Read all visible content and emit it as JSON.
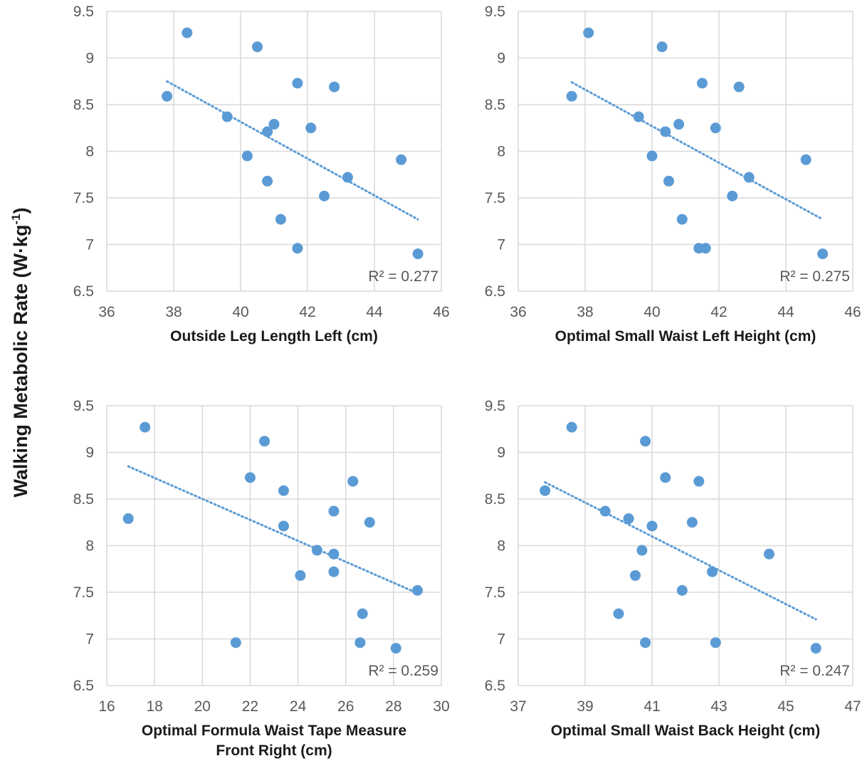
{
  "y_axis_label": "Walking Metabolic Rate (W·kg",
  "y_axis_label_sup": "-1",
  "y_axis_label_end": ")",
  "colors": {
    "points": "#5b9bd5",
    "trendline": "#5b9bd5",
    "grid": "#d9d9d9"
  },
  "chart_data": [
    {
      "type": "scatter",
      "xlabel_lines": [
        "Outside Leg Length Left (cm)"
      ],
      "xlim": [
        36,
        46
      ],
      "xticks": [
        36,
        38,
        40,
        42,
        44,
        46
      ],
      "ylim": [
        6.5,
        9.5
      ],
      "yticks": [
        "6.5",
        "7",
        "7.5",
        "8",
        "8.5",
        "9",
        "9.5"
      ],
      "grid": "vertical and horizontal",
      "r2_label": "R² = 0.277",
      "trendline": {
        "type": "linear",
        "x": [
          37.8,
          45.3
        ],
        "y": [
          8.75,
          7.27
        ]
      },
      "points": [
        {
          "x": 37.8,
          "y": 8.59
        },
        {
          "x": 38.4,
          "y": 9.27
        },
        {
          "x": 39.6,
          "y": 8.37
        },
        {
          "x": 40.2,
          "y": 7.95
        },
        {
          "x": 40.5,
          "y": 9.12
        },
        {
          "x": 40.8,
          "y": 8.21
        },
        {
          "x": 40.8,
          "y": 7.68
        },
        {
          "x": 41.0,
          "y": 8.29
        },
        {
          "x": 41.2,
          "y": 7.27
        },
        {
          "x": 41.7,
          "y": 8.73
        },
        {
          "x": 41.7,
          "y": 6.96
        },
        {
          "x": 42.1,
          "y": 8.25
        },
        {
          "x": 42.5,
          "y": 7.52
        },
        {
          "x": 42.8,
          "y": 8.69
        },
        {
          "x": 43.2,
          "y": 7.72
        },
        {
          "x": 44.8,
          "y": 7.91
        },
        {
          "x": 45.3,
          "y": 6.9
        }
      ]
    },
    {
      "type": "scatter",
      "xlabel_lines": [
        "Optimal Small Waist Left Height (cm)"
      ],
      "xlim": [
        36,
        46
      ],
      "xticks": [
        36,
        38,
        40,
        42,
        44,
        46
      ],
      "ylim": [
        6.5,
        9.5
      ],
      "yticks": [
        "6.5",
        "7",
        "7.5",
        "8",
        "8.5",
        "9",
        "9.5"
      ],
      "grid": "vertical and horizontal",
      "r2_label": "R² = 0.275",
      "trendline": {
        "type": "linear",
        "x": [
          37.6,
          45.1
        ],
        "y": [
          8.74,
          7.27
        ]
      },
      "points": [
        {
          "x": 37.6,
          "y": 8.59
        },
        {
          "x": 38.1,
          "y": 9.27
        },
        {
          "x": 39.6,
          "y": 8.37
        },
        {
          "x": 40.0,
          "y": 7.95
        },
        {
          "x": 40.3,
          "y": 9.12
        },
        {
          "x": 40.4,
          "y": 8.21
        },
        {
          "x": 40.5,
          "y": 7.68
        },
        {
          "x": 40.8,
          "y": 8.29
        },
        {
          "x": 40.9,
          "y": 7.27
        },
        {
          "x": 41.4,
          "y": 6.96
        },
        {
          "x": 41.5,
          "y": 8.73
        },
        {
          "x": 41.6,
          "y": 6.96
        },
        {
          "x": 41.9,
          "y": 8.25
        },
        {
          "x": 42.4,
          "y": 7.52
        },
        {
          "x": 42.6,
          "y": 8.69
        },
        {
          "x": 42.9,
          "y": 7.72
        },
        {
          "x": 44.6,
          "y": 7.91
        },
        {
          "x": 45.1,
          "y": 6.9
        }
      ]
    },
    {
      "type": "scatter",
      "xlabel_lines": [
        "Optimal Formula Waist Tape Measure",
        "Front Right (cm)"
      ],
      "xlim": [
        16,
        30
      ],
      "xticks": [
        16,
        18,
        20,
        22,
        24,
        26,
        28,
        30
      ],
      "ylim": [
        6.5,
        9.5
      ],
      "yticks": [
        "6.5",
        "7",
        "7.5",
        "8",
        "8.5",
        "9",
        "9.5"
      ],
      "grid": "vertical and horizontal",
      "r2_label": "R² = 0.259",
      "trendline": {
        "type": "linear",
        "x": [
          16.9,
          29.0
        ],
        "y": [
          8.85,
          7.49
        ]
      },
      "points": [
        {
          "x": 16.9,
          "y": 8.29
        },
        {
          "x": 17.6,
          "y": 9.27
        },
        {
          "x": 21.4,
          "y": 6.96
        },
        {
          "x": 22.0,
          "y": 8.73
        },
        {
          "x": 22.6,
          "y": 9.12
        },
        {
          "x": 23.4,
          "y": 8.59
        },
        {
          "x": 23.4,
          "y": 8.21
        },
        {
          "x": 24.1,
          "y": 7.68
        },
        {
          "x": 24.8,
          "y": 7.95
        },
        {
          "x": 25.5,
          "y": 8.37
        },
        {
          "x": 25.5,
          "y": 7.91
        },
        {
          "x": 25.5,
          "y": 7.72
        },
        {
          "x": 26.3,
          "y": 8.69
        },
        {
          "x": 26.6,
          "y": 6.96
        },
        {
          "x": 26.7,
          "y": 7.27
        },
        {
          "x": 27.0,
          "y": 8.25
        },
        {
          "x": 28.1,
          "y": 6.9
        },
        {
          "x": 29.0,
          "y": 7.52
        }
      ]
    },
    {
      "type": "scatter",
      "xlabel_lines": [
        "Optimal Small Waist Back Height (cm)"
      ],
      "xlim": [
        37,
        47
      ],
      "xticks": [
        37,
        39,
        41,
        43,
        45,
        47
      ],
      "ylim": [
        6.5,
        9.5
      ],
      "yticks": [
        "6.5",
        "7",
        "7.5",
        "8",
        "8.5",
        "9",
        "9.5"
      ],
      "grid": "vertical and horizontal",
      "r2_label": "R² = 0.247",
      "trendline": {
        "type": "linear",
        "x": [
          37.8,
          45.9
        ],
        "y": [
          8.68,
          7.21
        ]
      },
      "points": [
        {
          "x": 37.8,
          "y": 8.59
        },
        {
          "x": 38.6,
          "y": 9.27
        },
        {
          "x": 39.6,
          "y": 8.37
        },
        {
          "x": 40.0,
          "y": 7.27
        },
        {
          "x": 40.3,
          "y": 8.29
        },
        {
          "x": 40.5,
          "y": 7.68
        },
        {
          "x": 40.7,
          "y": 7.95
        },
        {
          "x": 40.8,
          "y": 9.12
        },
        {
          "x": 40.8,
          "y": 6.96
        },
        {
          "x": 41.0,
          "y": 8.21
        },
        {
          "x": 41.4,
          "y": 8.73
        },
        {
          "x": 41.9,
          "y": 7.52
        },
        {
          "x": 42.2,
          "y": 8.25
        },
        {
          "x": 42.4,
          "y": 8.69
        },
        {
          "x": 42.8,
          "y": 7.72
        },
        {
          "x": 42.9,
          "y": 6.96
        },
        {
          "x": 44.5,
          "y": 7.91
        },
        {
          "x": 45.9,
          "y": 6.9
        }
      ]
    }
  ]
}
